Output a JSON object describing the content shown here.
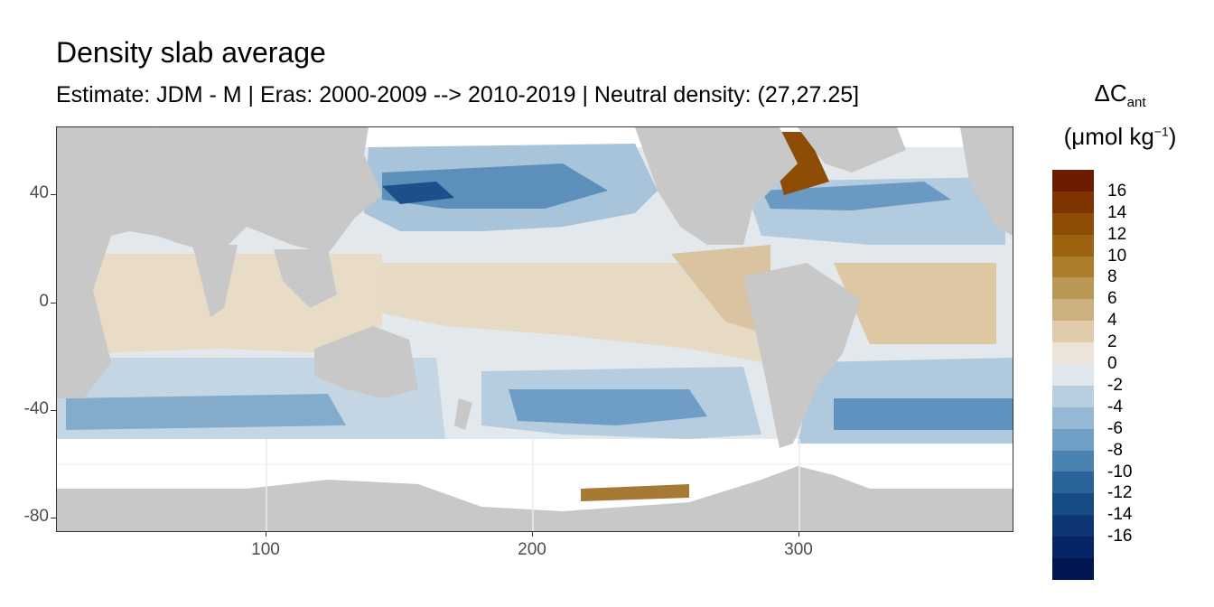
{
  "title": "Density slab average",
  "subtitle": "Estimate: JDM - M | Eras: 2000-2009 --> 2010-2019 | Neutral density: (27,27.25]",
  "legend": {
    "title_main": "ΔC",
    "title_sub": "ant",
    "unit_open": "(μmol kg",
    "unit_sup": "−1",
    "unit_close": ")",
    "labels": [
      "16",
      "14",
      "12",
      "10",
      "8",
      "6",
      "4",
      "2",
      "0",
      "-2",
      "-4",
      "-6",
      "-8",
      "-10",
      "-12",
      "-14",
      "-16"
    ],
    "colors": [
      "#6b1b00",
      "#7f3300",
      "#8f4c05",
      "#9c620f",
      "#ac7d2c",
      "#bb9755",
      "#ccb07f",
      "#e0ccaa",
      "#ece4d8",
      "#dfe6ec",
      "#b8cfe0",
      "#95b9d4",
      "#6f9fc4",
      "#4b83b0",
      "#2a649a",
      "#164c85",
      "#0e3676",
      "#072564",
      "#011651"
    ]
  },
  "axes": {
    "x_ticks": [
      "100",
      "200",
      "300"
    ],
    "y_ticks": [
      "40",
      "0",
      "-40",
      "-80"
    ]
  },
  "chart_data": {
    "type": "heatmap",
    "title": "Density slab average",
    "subtitle": "Estimate: JDM - M | Eras: 2000-2009 --> 2010-2019 | Neutral density: (27,27.25]",
    "x_range": [
      20,
      380
    ],
    "y_range": [
      -85,
      65
    ],
    "x_ticks": [
      100,
      200,
      300
    ],
    "y_ticks": [
      40,
      0,
      -40,
      -80
    ],
    "color_scale": {
      "min": -18,
      "max": 18,
      "step": 2
    },
    "legend_placement": "right",
    "land_color": "#c8c8c8",
    "no_data_color": "#ffffff"
  }
}
